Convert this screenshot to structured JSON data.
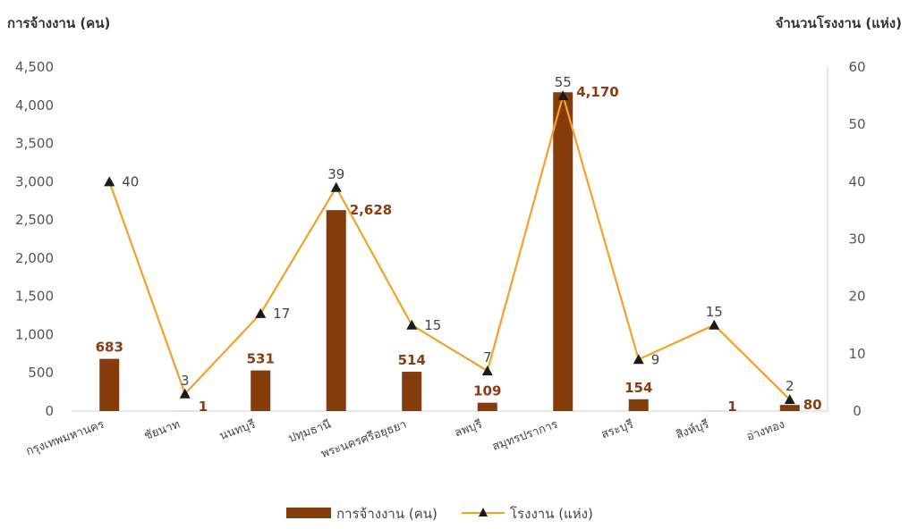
{
  "chart_data": {
    "type": "bar",
    "categories": [
      "กรุงเทพมหานคร",
      "ชัยนาท",
      "นนทบุรี",
      "ปทุมธานี",
      "พระนครศรีอยุธยา",
      "ลพบุรี",
      "สมุทรปราการ",
      "สระบุรี",
      "สิงห์บุรี",
      "อ่างทอง"
    ],
    "series": [
      {
        "name": "การจ้างงาน (คน)",
        "type": "bar",
        "axis": "left",
        "values": [
          683,
          1,
          531,
          2628,
          514,
          109,
          4170,
          154,
          1,
          80
        ],
        "labels": [
          "683",
          "1",
          "531",
          "2,628",
          "514",
          "109",
          "4,170",
          "154",
          "1",
          "80"
        ],
        "color": "#843c0c"
      },
      {
        "name": "โรงงาน (แห่ง)",
        "type": "line",
        "axis": "right",
        "values": [
          40,
          3,
          17,
          39,
          15,
          7,
          55,
          9,
          15,
          2
        ],
        "labels": [
          "40",
          "3",
          "17",
          "39",
          "15",
          "7",
          "55",
          "9",
          "15",
          "2"
        ],
        "line_color": "#f4a029",
        "marker_color": "#1a1a1a"
      }
    ],
    "y_left": {
      "title": "การจ้างงาน (คน)",
      "ylim": [
        0,
        4500
      ],
      "ticks": [
        0,
        500,
        1000,
        1500,
        2000,
        2500,
        3000,
        3500,
        4000,
        4500
      ],
      "tick_labels": [
        "0",
        "500",
        "1,000",
        "1,500",
        "2,000",
        "2,500",
        "3,000",
        "3,500",
        "4,000",
        "4,500"
      ]
    },
    "y_right": {
      "title": "จำนวนโรงงาน (แห่ง)",
      "ylim": [
        0,
        60
      ],
      "ticks": [
        0,
        10,
        20,
        30,
        40,
        50,
        60
      ],
      "tick_labels": [
        "0",
        "10",
        "20",
        "30",
        "40",
        "50",
        "60"
      ]
    },
    "grid": false,
    "legend_position": "bottom"
  }
}
